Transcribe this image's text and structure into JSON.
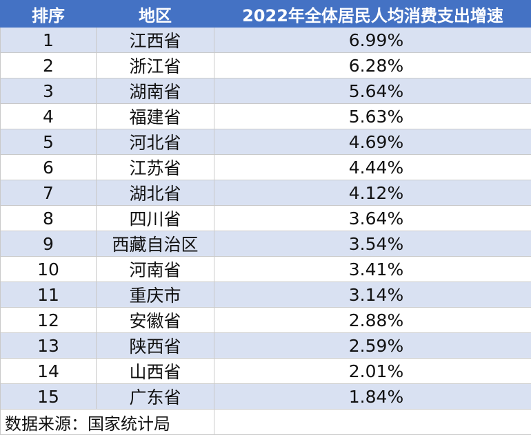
{
  "table": {
    "headers": [
      "排序",
      "地区",
      "2022年全体居民人均消费支出增速"
    ],
    "rows": [
      {
        "rank": "1",
        "region": "江西省",
        "growth": "6.99%"
      },
      {
        "rank": "2",
        "region": "浙江省",
        "growth": "6.28%"
      },
      {
        "rank": "3",
        "region": "湖南省",
        "growth": "5.64%"
      },
      {
        "rank": "4",
        "region": "福建省",
        "growth": "5.63%"
      },
      {
        "rank": "5",
        "region": "河北省",
        "growth": "4.69%"
      },
      {
        "rank": "6",
        "region": "江苏省",
        "growth": "4.44%"
      },
      {
        "rank": "7",
        "region": "湖北省",
        "growth": "4.12%"
      },
      {
        "rank": "8",
        "region": "四川省",
        "growth": "3.64%"
      },
      {
        "rank": "9",
        "region": "西藏自治区",
        "growth": "3.54%"
      },
      {
        "rank": "10",
        "region": "河南省",
        "growth": "3.41%"
      },
      {
        "rank": "11",
        "region": "重庆市",
        "growth": "3.14%"
      },
      {
        "rank": "12",
        "region": "安徽省",
        "growth": "2.88%"
      },
      {
        "rank": "13",
        "region": "陕西省",
        "growth": "2.59%"
      },
      {
        "rank": "14",
        "region": "山西省",
        "growth": "2.01%"
      },
      {
        "rank": "15",
        "region": "广东省",
        "growth": "1.84%"
      }
    ],
    "source": "数据来源：国家统计局"
  },
  "colors": {
    "header_bg": "#4472c4",
    "header_text": "#ffffff",
    "band_bg": "#d9e1f2",
    "grid": "#c9c9c9"
  }
}
